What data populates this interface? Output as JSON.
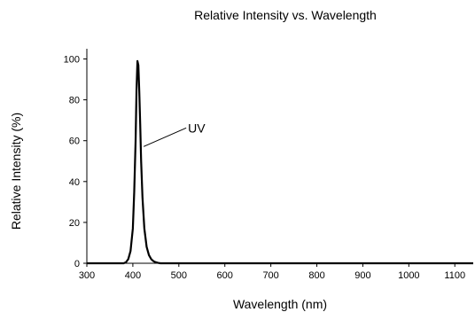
{
  "chart_data": {
    "type": "line",
    "title": "Relative Intensity vs. Wavelength",
    "xlabel": "Wavelength  (nm)",
    "ylabel": "Relative  Intensity  (%)",
    "xlim": [
      300,
      1140
    ],
    "ylim": [
      0,
      105
    ],
    "xticks": [
      300,
      400,
      500,
      600,
      700,
      800,
      900,
      1000,
      1100
    ],
    "yticks": [
      0,
      20,
      40,
      60,
      80,
      100
    ],
    "grid": false,
    "legend": "none",
    "series": [
      {
        "x": [
          300,
          380,
          385,
          390,
          395,
          400,
          403,
          406,
          408,
          410,
          412,
          414,
          416,
          418,
          421,
          425,
          430,
          435,
          440,
          445,
          450,
          455,
          460,
          470,
          500,
          700,
          900,
          1140
        ],
        "y": [
          0,
          0,
          0.5,
          2,
          6,
          17,
          35,
          60,
          85,
          99,
          97,
          84,
          68,
          50,
          32,
          17,
          8,
          4,
          2,
          1,
          0.5,
          0.2,
          0,
          0,
          0,
          0,
          0,
          0
        ],
        "color": "#000000"
      }
    ],
    "annotations": [
      {
        "text": "UV",
        "x": 412,
        "y": 58
      }
    ]
  }
}
